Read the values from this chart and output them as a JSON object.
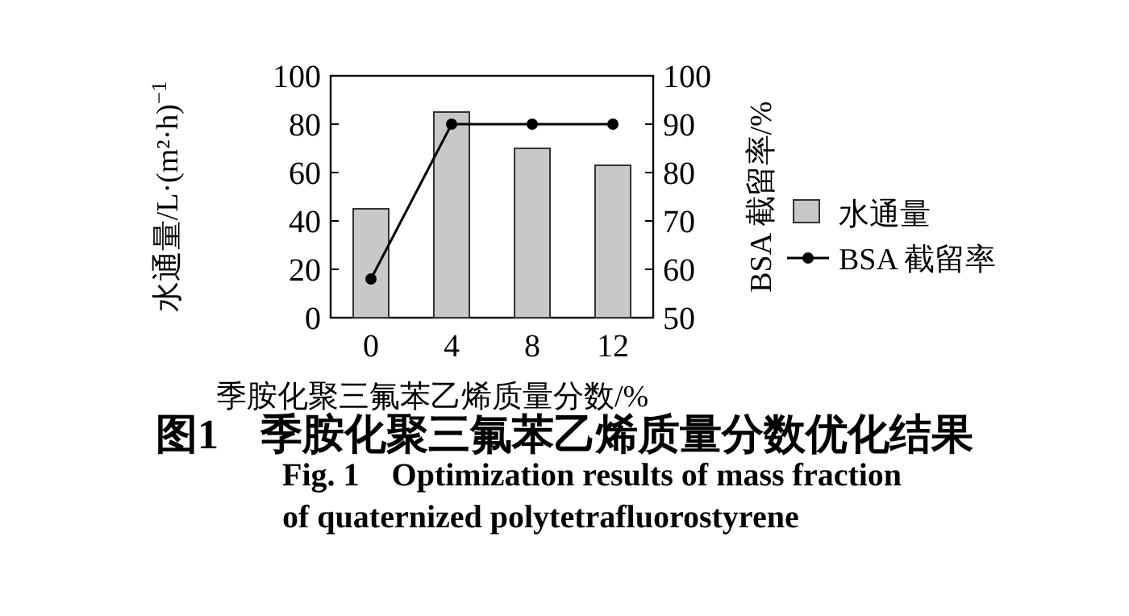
{
  "chart_data": {
    "type": "bar",
    "title": "图1　季胺化聚三氟苯乙烯质量分数优化结果",
    "subtitle": "Fig. 1　Optimization results of mass fraction of quaternized polytetrafluorostyrene",
    "xlabel": "季胺化聚三氟苯乙烯质量分数/%",
    "ylabel": "水通量/L·(m²·h)$^{−1}$",
    "y2label": "BSA 截留率/%",
    "categories": [
      "0",
      "4",
      "8",
      "12"
    ],
    "series": [
      {
        "name": "水通量",
        "color": "#c8c8c8",
        "values": [
          45,
          85,
          70,
          63
        ]
      },
      {
        "name": "BSA 截留率",
        "type": "line",
        "axis": "y2",
        "color": "#000000",
        "values": [
          58,
          90,
          90,
          90
        ]
      }
    ],
    "ylim": [
      0,
      100
    ],
    "yticks": [
      0,
      20,
      40,
      60,
      80,
      100
    ],
    "y2lim": [
      50,
      100
    ],
    "y2ticks": [
      50,
      60,
      70,
      80,
      90,
      100
    ],
    "marker": "circle",
    "legend": "right",
    "grid": false
  }
}
